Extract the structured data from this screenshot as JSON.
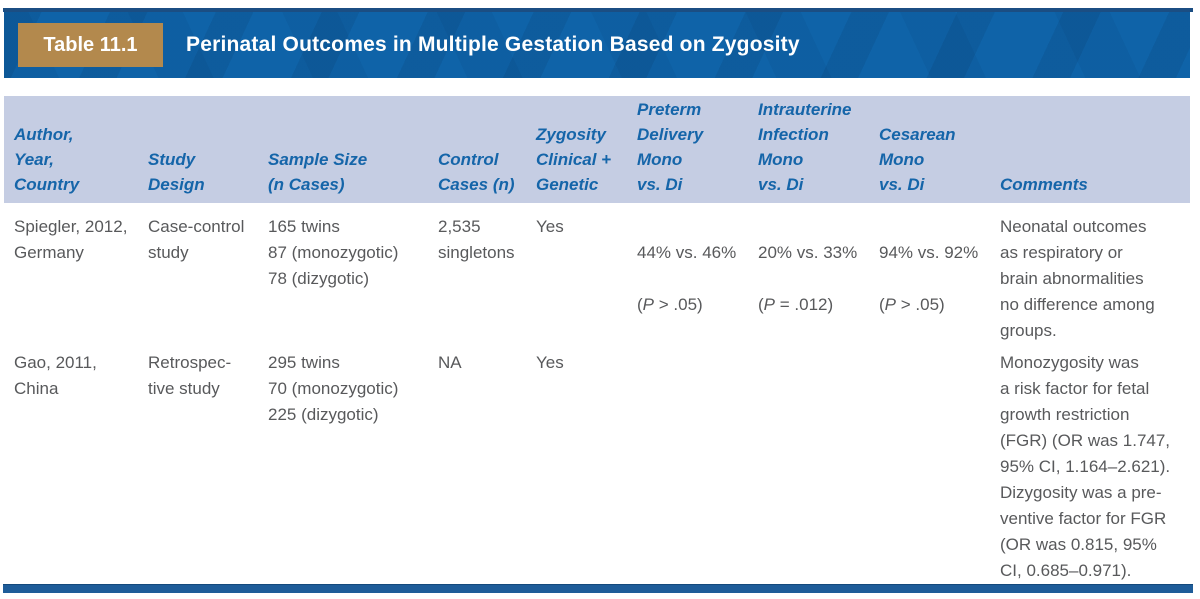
{
  "banner": {
    "label": "Table 11.1",
    "title": "Perinatal Outcomes in Multiple Gestation Based on Zygosity"
  },
  "colors": {
    "banner_blue": "#0f63a8",
    "label_tan": "#b3894d",
    "header_band": "#c5cde3",
    "header_text_blue": "#1565a9",
    "body_text_gray": "#58595b",
    "top_rule_blue": "#1b4e83",
    "bottom_rule_blue": "#1e5c99"
  },
  "table": {
    "columns": [
      {
        "id": "author_year_country",
        "lines": [
          "Author,",
          "Year,",
          "Country"
        ]
      },
      {
        "id": "study_design",
        "lines": [
          "Study",
          "Design"
        ]
      },
      {
        "id": "sample_size",
        "lines": [
          "Sample Size",
          "(n Cases)"
        ]
      },
      {
        "id": "control_cases",
        "lines": [
          "Control",
          "Cases (n)"
        ]
      },
      {
        "id": "zygosity",
        "lines": [
          "Zygosity",
          "Clinical +",
          "Genetic"
        ]
      },
      {
        "id": "preterm_delivery",
        "lines": [
          "Preterm",
          "Delivery",
          "Mono",
          "vs. Di"
        ]
      },
      {
        "id": "intrauterine_infection",
        "lines": [
          "Intrauterine",
          "Infection",
          "Mono",
          "vs. Di"
        ]
      },
      {
        "id": "cesarean",
        "lines": [
          "Cesarean",
          "Mono",
          "vs. Di"
        ]
      },
      {
        "id": "comments",
        "lines": [
          "Comments"
        ]
      }
    ],
    "rows": [
      {
        "author_year_country": [
          "Spiegler, 2012,",
          "Germany"
        ],
        "study_design": [
          "Case-control",
          "study"
        ],
        "sample_size": [
          "165 twins",
          "87 (monozygotic)",
          "78 (dizygotic)"
        ],
        "control_cases": [
          "2,535",
          "singletons"
        ],
        "zygosity": "Yes",
        "preterm_delivery": {
          "rates": "44% vs. 46%",
          "p_open": "(",
          "p_symbol": "P",
          "p_rest": " > .05)"
        },
        "intrauterine_infection": {
          "rates": "20% vs. 33%",
          "p_open": "(",
          "p_symbol": "P",
          "p_rest": " = .012)"
        },
        "cesarean": {
          "rates": "94% vs. 92%",
          "p_open": "(",
          "p_symbol": "P",
          "p_rest": " > .05)"
        },
        "comments": [
          "Neonatal outcomes",
          "as respiratory or",
          "brain abnormalities",
          "no difference among",
          "groups."
        ]
      },
      {
        "author_year_country": [
          "Gao, 2011,",
          "China"
        ],
        "study_design": [
          "Retrospec-",
          "tive study"
        ],
        "sample_size": [
          "295 twins",
          "70 (monozygotic)",
          "225 (dizygotic)"
        ],
        "control_cases": [
          "NA"
        ],
        "zygosity": "Yes",
        "preterm_delivery": "",
        "intrauterine_infection": "",
        "cesarean": "",
        "comments": [
          "Monozygosity was",
          "a risk factor for fetal",
          "growth restriction",
          "(FGR) (OR was 1.747,",
          "95% CI, 1.164–2.621).",
          "Dizygosity was a pre-",
          "ventive factor for FGR",
          "(OR was 0.815, 95%",
          "CI, 0.685–0.971)."
        ]
      }
    ]
  }
}
